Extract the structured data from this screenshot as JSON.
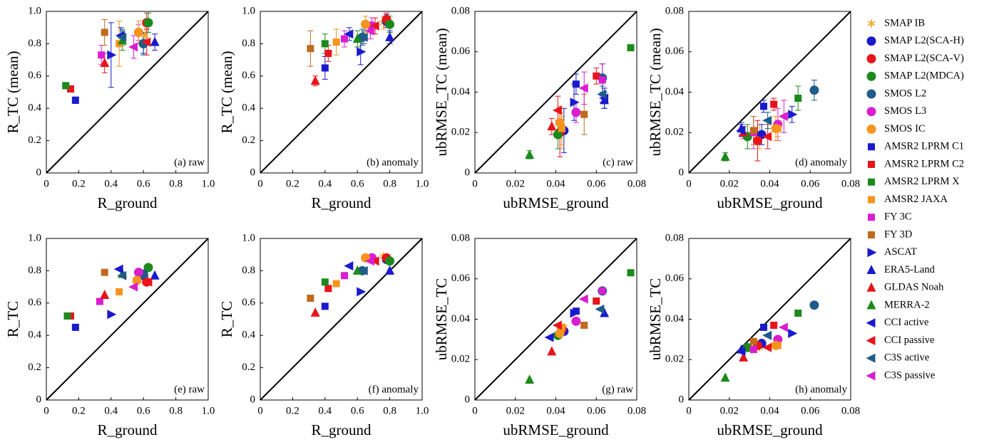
{
  "chart_data": [
    {
      "type": "scatter",
      "annotation": "(a) raw",
      "xlabel": "R_ground",
      "ylabel": "R_TC (mean)",
      "xlim": [
        0,
        1
      ],
      "ylim": [
        0,
        1
      ],
      "xticks": [
        0,
        0.2,
        0.4,
        0.6,
        0.8,
        {
          "value": 1,
          "label": "1.0"
        }
      ],
      "yticks": [
        0,
        0.2,
        0.4,
        0.6,
        0.8,
        {
          "value": 1,
          "label": "1.0"
        }
      ],
      "x": [
        0.61,
        0.6,
        0.62,
        0.63,
        0.6,
        0.57,
        0.57,
        0.18,
        0.15,
        0.12,
        0.45,
        0.34,
        0.36,
        0.4,
        0.67,
        0.36,
        0.47,
        0.46,
        0.62,
        0.47,
        0.54
      ],
      "y": [
        0.85,
        0.8,
        0.93,
        0.93,
        0.8,
        0.87,
        0.87,
        0.45,
        0.52,
        0.54,
        0.8,
        0.73,
        0.87,
        0.73,
        0.81,
        0.68,
        0.82,
        0.85,
        0.81,
        0.84,
        0.78
      ],
      "yerr": [
        0.06,
        0.06,
        0.06,
        0.06,
        0.07,
        0.05,
        0.07,
        0.02,
        0.02,
        0.02,
        0.14,
        0.06,
        0.08,
        0.2,
        0.05,
        0.06,
        0.06,
        0.05,
        0.08,
        0.05,
        0.07
      ]
    },
    {
      "type": "scatter",
      "annotation": "(b) anomaly",
      "xlabel": "R_ground",
      "ylabel": "R_TC (mean)",
      "xlim": [
        0,
        1
      ],
      "ylim": [
        0,
        1
      ],
      "xticks": [
        0,
        0.2,
        0.4,
        0.6,
        0.8,
        {
          "value": 1,
          "label": "1.0"
        }
      ],
      "yticks": [
        0,
        0.2,
        0.4,
        0.6,
        0.8,
        {
          "value": 1,
          "label": "1.0"
        }
      ],
      "x": [
        0.76,
        0.78,
        0.78,
        0.8,
        0.63,
        0.69,
        0.65,
        0.4,
        0.42,
        0.4,
        0.47,
        0.52,
        0.31,
        0.62,
        0.8,
        0.34,
        0.6,
        0.55,
        0.71,
        0.64,
        0.68
      ],
      "y": [
        0.93,
        0.94,
        0.95,
        0.92,
        0.84,
        0.91,
        0.92,
        0.65,
        0.74,
        0.8,
        0.81,
        0.83,
        0.77,
        0.75,
        0.84,
        0.57,
        0.83,
        0.86,
        0.91,
        0.84,
        0.88
      ],
      "yerr": [
        0.04,
        0.04,
        0.04,
        0.05,
        0.05,
        0.05,
        0.05,
        0.07,
        0.05,
        0.06,
        0.08,
        0.05,
        0.11,
        0.08,
        0.04,
        0.03,
        0.05,
        0.04,
        0.05,
        0.04,
        0.05
      ]
    },
    {
      "type": "scatter",
      "annotation": "(c) raw",
      "xlabel": "ubRMSE_ground",
      "ylabel": "ubRMSE_TC (mean)",
      "xlim": [
        0,
        0.08
      ],
      "ylim": [
        0,
        0.08
      ],
      "xticks": [
        0,
        0.02,
        0.04,
        0.06,
        0.08
      ],
      "yticks": [
        0,
        0.02,
        0.04,
        0.06,
        0.08
      ],
      "x": [
        0.043,
        0.044,
        0.042,
        0.041,
        0.063,
        0.05,
        0.042,
        0.05,
        0.06,
        0.077,
        0.043,
        0.063,
        0.054,
        0.049,
        0.064,
        0.038,
        0.027,
        0.064,
        0.041,
        0.063,
        0.054
      ],
      "y": [
        0.02,
        0.021,
        0.02,
        0.019,
        0.047,
        0.03,
        0.025,
        0.044,
        0.048,
        0.062,
        0.022,
        0.046,
        0.029,
        0.035,
        0.036,
        0.023,
        0.009,
        0.037,
        0.031,
        0.039,
        0.042
      ],
      "yerr": [
        0.008,
        0.011,
        0.012,
        0.007,
        0.007,
        0.005,
        0.008,
        0.005,
        0.004,
        0.001,
        0.008,
        0.008,
        0.01,
        0.009,
        0.004,
        0.004,
        0.002,
        0.005,
        0.007,
        0.004,
        0.008
      ]
    },
    {
      "type": "scatter",
      "annotation": "(d) anomaly",
      "xlabel": "ubRMSE_ground",
      "ylabel": "ubRMSE_TC (mean)",
      "xlim": [
        0,
        0.08
      ],
      "ylim": [
        0,
        0.08
      ],
      "xticks": [
        0,
        0.02,
        0.04,
        0.06,
        0.08
      ],
      "yticks": [
        0,
        0.02,
        0.04,
        0.06,
        0.08
      ],
      "x": [
        0.035,
        0.036,
        0.034,
        0.029,
        0.062,
        0.044,
        0.043,
        0.037,
        0.042,
        0.054,
        0.044,
        0.032,
        0.032,
        0.051,
        0.026,
        0.027,
        0.018,
        0.026,
        0.039,
        0.039,
        0.047
      ],
      "y": [
        0.018,
        0.019,
        0.016,
        0.018,
        0.041,
        0.024,
        0.022,
        0.033,
        0.034,
        0.037,
        0.022,
        0.02,
        0.021,
        0.029,
        0.022,
        0.02,
        0.008,
        0.021,
        0.018,
        0.026,
        0.028
      ],
      "yerr": [
        0.006,
        0.005,
        0.01,
        0.006,
        0.005,
        0.008,
        0.006,
        0.003,
        0.003,
        0.006,
        0.004,
        0.008,
        0.007,
        0.004,
        0.003,
        0.003,
        0.002,
        0.003,
        0.006,
        0.004,
        0.008
      ]
    },
    {
      "type": "scatter",
      "annotation": "(e) raw",
      "xlabel": "R_ground",
      "ylabel": "R_TC",
      "xlim": [
        0,
        1
      ],
      "ylim": [
        0,
        1
      ],
      "xticks": [
        0,
        0.2,
        0.4,
        0.6,
        0.8,
        {
          "value": 1,
          "label": "1.0"
        }
      ],
      "yticks": [
        0,
        0.2,
        0.4,
        0.6,
        0.8,
        {
          "value": 1,
          "label": "1.0"
        }
      ],
      "x": [
        0.61,
        0.6,
        0.62,
        0.63,
        0.6,
        0.57,
        0.56,
        0.18,
        0.15,
        0.13,
        0.45,
        0.33,
        0.36,
        0.4,
        0.67,
        0.36,
        0.47,
        0.45,
        0.63,
        0.47,
        0.54
      ],
      "y": [
        0.76,
        0.77,
        0.73,
        0.82,
        0.78,
        0.79,
        0.74,
        0.45,
        0.52,
        0.52,
        0.67,
        0.61,
        0.79,
        0.53,
        0.77,
        0.65,
        0.78,
        0.81,
        0.73,
        0.77,
        0.7
      ]
    },
    {
      "type": "scatter",
      "annotation": "(f) anomaly",
      "xlabel": "R_ground",
      "ylabel": "R_TC",
      "xlim": [
        0,
        1
      ],
      "ylim": [
        0,
        1
      ],
      "xticks": [
        0,
        0.2,
        0.4,
        0.6,
        0.8,
        {
          "value": 1,
          "label": "1.0"
        }
      ],
      "yticks": [
        0,
        0.2,
        0.4,
        0.6,
        0.8,
        {
          "value": 1,
          "label": "1.0"
        }
      ],
      "x": [
        0.76,
        0.78,
        0.78,
        0.8,
        0.63,
        0.69,
        0.65,
        0.4,
        0.42,
        0.4,
        0.47,
        0.52,
        0.31,
        0.62,
        0.8,
        0.34,
        0.6,
        0.55,
        0.71,
        0.64,
        0.68
      ],
      "y": [
        0.89,
        0.87,
        0.88,
        0.86,
        0.8,
        0.88,
        0.88,
        0.58,
        0.69,
        0.73,
        0.72,
        0.77,
        0.63,
        0.67,
        0.8,
        0.54,
        0.8,
        0.83,
        0.86,
        0.8,
        0.86
      ]
    },
    {
      "type": "scatter",
      "annotation": "(g) raw",
      "xlabel": "ubRMSE_ground",
      "ylabel": "ubRMSE_TC",
      "xlim": [
        0,
        0.08
      ],
      "ylim": [
        0,
        0.08
      ],
      "xticks": [
        0,
        0.02,
        0.04,
        0.06,
        0.08
      ],
      "yticks": [
        0,
        0.02,
        0.04,
        0.06,
        0.08
      ],
      "x": [
        0.044,
        0.044,
        0.043,
        0.041,
        0.063,
        0.05,
        0.042,
        0.05,
        0.06,
        0.077,
        0.043,
        0.063,
        0.054,
        0.049,
        0.064,
        0.038,
        0.027,
        0.037,
        0.041,
        0.062,
        0.054
      ],
      "y": [
        0.036,
        0.034,
        0.035,
        0.032,
        0.054,
        0.039,
        0.033,
        0.044,
        0.049,
        0.063,
        0.036,
        0.054,
        0.037,
        0.043,
        0.043,
        0.024,
        0.01,
        0.031,
        0.037,
        0.045,
        0.05
      ]
    },
    {
      "type": "scatter",
      "annotation": "(h) anomaly",
      "xlabel": "ubRMSE_ground",
      "ylabel": "ubRMSE_TC",
      "xlim": [
        0,
        0.08
      ],
      "ylim": [
        0,
        0.08
      ],
      "xticks": [
        0,
        0.02,
        0.04,
        0.06,
        0.08
      ],
      "yticks": [
        0,
        0.02,
        0.04,
        0.06,
        0.08
      ],
      "x": [
        0.035,
        0.036,
        0.034,
        0.029,
        0.062,
        0.044,
        0.043,
        0.037,
        0.042,
        0.054,
        0.044,
        0.032,
        0.032,
        0.051,
        0.026,
        0.027,
        0.018,
        0.026,
        0.039,
        0.039,
        0.047
      ],
      "y": [
        0.026,
        0.028,
        0.027,
        0.026,
        0.047,
        0.03,
        0.027,
        0.036,
        0.037,
        0.043,
        0.027,
        0.025,
        0.029,
        0.033,
        0.025,
        0.021,
        0.011,
        0.024,
        0.026,
        0.032,
        0.036
      ]
    }
  ],
  "legend": [
    {
      "name": "SMAP IB",
      "color": "#f5a623",
      "marker": "asterisk"
    },
    {
      "name": "SMAP L2(SCA-H)",
      "color": "#1a1acd",
      "marker": "circle"
    },
    {
      "name": "SMAP L2(SCA-V)",
      "color": "#e8141b",
      "marker": "circle"
    },
    {
      "name": "SMAP L2(MDCA)",
      "color": "#1b8a1b",
      "marker": "circle"
    },
    {
      "name": "SMOS L2",
      "color": "#1f5c8a",
      "marker": "circle"
    },
    {
      "name": "SMOS L3",
      "color": "#d91ed0",
      "marker": "circle"
    },
    {
      "name": "SMOS IC",
      "color": "#f7941d",
      "marker": "circle"
    },
    {
      "name": "AMSR2 LPRM C1",
      "color": "#1a1acd",
      "marker": "square"
    },
    {
      "name": "AMSR2 LPRM C2",
      "color": "#e8141b",
      "marker": "square"
    },
    {
      "name": "AMSR2 LPRM X",
      "color": "#1b8a1b",
      "marker": "square"
    },
    {
      "name": "AMSR2  JAXA",
      "color": "#f7941d",
      "marker": "square"
    },
    {
      "name": "FY 3C",
      "color": "#d91ed0",
      "marker": "square"
    },
    {
      "name": "FY 3D",
      "color": "#c06a1e",
      "marker": "square"
    },
    {
      "name": "ASCAT",
      "color": "#1a1acd",
      "marker": "triangle-right"
    },
    {
      "name": "ERA5-Land",
      "color": "#1a1acd",
      "marker": "triangle-up"
    },
    {
      "name": "GLDAS Noah",
      "color": "#e8141b",
      "marker": "triangle-up"
    },
    {
      "name": "MERRA-2",
      "color": "#1b8a1b",
      "marker": "triangle-up"
    },
    {
      "name": "CCI active",
      "color": "#1a1acd",
      "marker": "triangle-left"
    },
    {
      "name": "CCI passive",
      "color": "#e8141b",
      "marker": "triangle-left"
    },
    {
      "name": "C3S active",
      "color": "#1f5c8a",
      "marker": "triangle-left"
    },
    {
      "name": "C3S passive",
      "color": "#d91ed0",
      "marker": "triangle-left"
    }
  ]
}
